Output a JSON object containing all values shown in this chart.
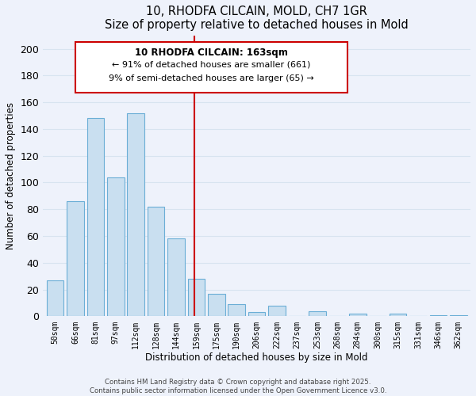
{
  "title": "10, RHODFA CILCAIN, MOLD, CH7 1GR",
  "subtitle": "Size of property relative to detached houses in Mold",
  "xlabel": "Distribution of detached houses by size in Mold",
  "ylabel": "Number of detached properties",
  "bar_labels": [
    "50sqm",
    "66sqm",
    "81sqm",
    "97sqm",
    "112sqm",
    "128sqm",
    "144sqm",
    "159sqm",
    "175sqm",
    "190sqm",
    "206sqm",
    "222sqm",
    "237sqm",
    "253sqm",
    "268sqm",
    "284sqm",
    "300sqm",
    "315sqm",
    "331sqm",
    "346sqm",
    "362sqm"
  ],
  "bar_values": [
    27,
    86,
    148,
    104,
    152,
    82,
    58,
    28,
    17,
    9,
    3,
    8,
    0,
    4,
    0,
    2,
    0,
    2,
    0,
    1,
    1
  ],
  "bar_color": "#c9dff0",
  "bar_edge_color": "#6baed6",
  "vline_index": 7,
  "vline_color": "#cc0000",
  "ylim": [
    0,
    210
  ],
  "yticks": [
    0,
    20,
    40,
    60,
    80,
    100,
    120,
    140,
    160,
    180,
    200
  ],
  "annotation_title": "10 RHODFA CILCAIN: 163sqm",
  "annotation_line1": "← 91% of detached houses are smaller (661)",
  "annotation_line2": "9% of semi-detached houses are larger (65) →",
  "box_facecolor": "#ffffff",
  "box_edgecolor": "#cc0000",
  "footer_line1": "Contains HM Land Registry data © Crown copyright and database right 2025.",
  "footer_line2": "Contains public sector information licensed under the Open Government Licence v3.0.",
  "bg_color": "#eef2fb",
  "grid_color": "#d8e4f0"
}
